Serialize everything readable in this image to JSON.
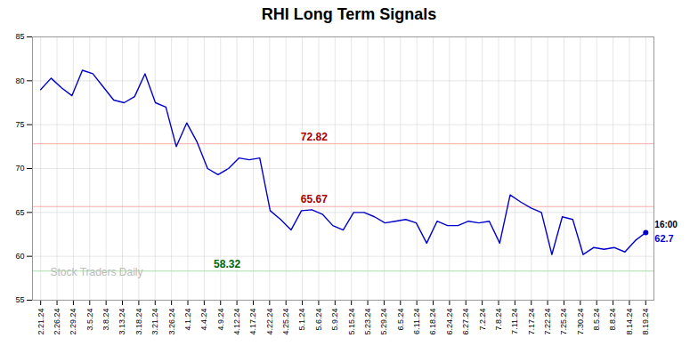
{
  "chart_data": {
    "type": "line",
    "title": "RHI Long Term Signals",
    "color": "#0000cc",
    "x": [
      0,
      0.6379,
      1.2759,
      1.9138,
      2.5517,
      3.1897,
      3.8276,
      4.4655,
      5.1034,
      5.7414,
      6.3793,
      7.0172,
      7.6552,
      8.2931,
      8.931,
      9.569,
      10.2069,
      10.8448,
      11.4828,
      12.1207,
      12.7586,
      13.3966,
      14.0345,
      14.6724,
      15.3103,
      15.9483,
      16.5862,
      17.2241,
      17.8621,
      18.5,
      19.1379,
      19.7759,
      20.4138,
      21.0517,
      21.6897,
      22.3276,
      22.9655,
      23.6034,
      24.2414,
      24.8793,
      25.5172,
      26.1552,
      26.7931,
      27.431,
      28.069,
      28.7069,
      29.3448,
      29.9828,
      30.6207,
      31.2586,
      31.8966,
      32.5345,
      33.1724,
      33.8103,
      34.4483,
      35.0862,
      35.7241,
      36.3621,
      37
    ],
    "values": [
      79.0,
      80.3,
      79.2,
      78.3,
      81.2,
      80.8,
      79.3,
      77.8,
      77.5,
      78.2,
      80.8,
      77.5,
      77.0,
      72.5,
      75.2,
      73.0,
      70.0,
      69.3,
      70.0,
      71.2,
      71.0,
      71.2,
      65.2,
      64.2,
      63.0,
      65.2,
      65.3,
      64.8,
      63.5,
      63.0,
      65.0,
      65.0,
      64.5,
      63.8,
      64.0,
      64.2,
      63.8,
      61.5,
      64.0,
      63.5,
      63.5,
      64.0,
      63.8,
      64.0,
      61.5,
      67.0,
      66.2,
      65.5,
      65.0,
      60.2,
      64.5,
      64.2,
      60.2,
      61.0,
      60.8,
      61.0,
      60.5,
      61.8,
      62.7
    ],
    "xlim": [
      -0.5,
      37.5
    ],
    "xticks": [
      {
        "value": 0,
        "label": "2.21.24"
      },
      {
        "value": 1,
        "label": "2.26.24"
      },
      {
        "value": 2,
        "label": "2.29.24"
      },
      {
        "value": 3,
        "label": "3.5.24"
      },
      {
        "value": 4,
        "label": "3.8.24"
      },
      {
        "value": 5,
        "label": "3.13.24"
      },
      {
        "value": 6,
        "label": "3.18.24"
      },
      {
        "value": 7,
        "label": "3.21.24"
      },
      {
        "value": 8,
        "label": "3.26.24"
      },
      {
        "value": 9,
        "label": "4.1.24"
      },
      {
        "value": 10,
        "label": "4.4.24"
      },
      {
        "value": 11,
        "label": "4.9.24"
      },
      {
        "value": 12,
        "label": "4.12.24"
      },
      {
        "value": 13,
        "label": "4.17.24"
      },
      {
        "value": 14,
        "label": "4.22.24"
      },
      {
        "value": 15,
        "label": "4.25.24"
      },
      {
        "value": 16,
        "label": "5.1.24"
      },
      {
        "value": 17,
        "label": "5.6.24"
      },
      {
        "value": 18,
        "label": "5.9.24"
      },
      {
        "value": 19,
        "label": "5.15.24"
      },
      {
        "value": 20,
        "label": "5.23.24"
      },
      {
        "value": 21,
        "label": "5.29.24"
      },
      {
        "value": 22,
        "label": "6.5.24"
      },
      {
        "value": 23,
        "label": "6.11.24"
      },
      {
        "value": 24,
        "label": "6.18.24"
      },
      {
        "value": 25,
        "label": "6.24.24"
      },
      {
        "value": 26,
        "label": "6.27.24"
      },
      {
        "value": 27,
        "label": "7.2.24"
      },
      {
        "value": 28,
        "label": "7.8.24"
      },
      {
        "value": 29,
        "label": "7.11.24"
      },
      {
        "value": 30,
        "label": "7.17.24"
      },
      {
        "value": 31,
        "label": "7.22.24"
      },
      {
        "value": 32,
        "label": "7.25.24"
      },
      {
        "value": 33,
        "label": "7.30.24"
      },
      {
        "value": 34,
        "label": "8.5.24"
      },
      {
        "value": 35,
        "label": "8.8.24"
      },
      {
        "value": 36,
        "label": "8.14.24"
      },
      {
        "value": 37,
        "label": "8.19.24"
      }
    ],
    "ylim": [
      55,
      85
    ],
    "yticks": [
      55,
      60,
      65,
      70,
      75,
      80,
      85
    ],
    "grid": true,
    "grid_color": "#cccccc",
    "hlines": [
      {
        "y": 72.82,
        "color": "#ffaaaa"
      },
      {
        "y": 65.67,
        "color": "#ffaaaa"
      },
      {
        "y": 58.32,
        "color": "#aaddaa"
      }
    ],
    "annotations": [
      {
        "text": "72.82",
        "y": 72.82,
        "color": "#aa0000"
      },
      {
        "text": "65.67",
        "y": 65.67,
        "color": "#aa0000"
      },
      {
        "text": "58.32",
        "y": 58.32,
        "color": "#006600"
      }
    ],
    "last_point": {
      "label": "16:00",
      "value_label": "62.7",
      "color": "#0000cc"
    },
    "watermark": {
      "text": "Stock Traders Daily",
      "color": "#bbbbbb"
    }
  }
}
